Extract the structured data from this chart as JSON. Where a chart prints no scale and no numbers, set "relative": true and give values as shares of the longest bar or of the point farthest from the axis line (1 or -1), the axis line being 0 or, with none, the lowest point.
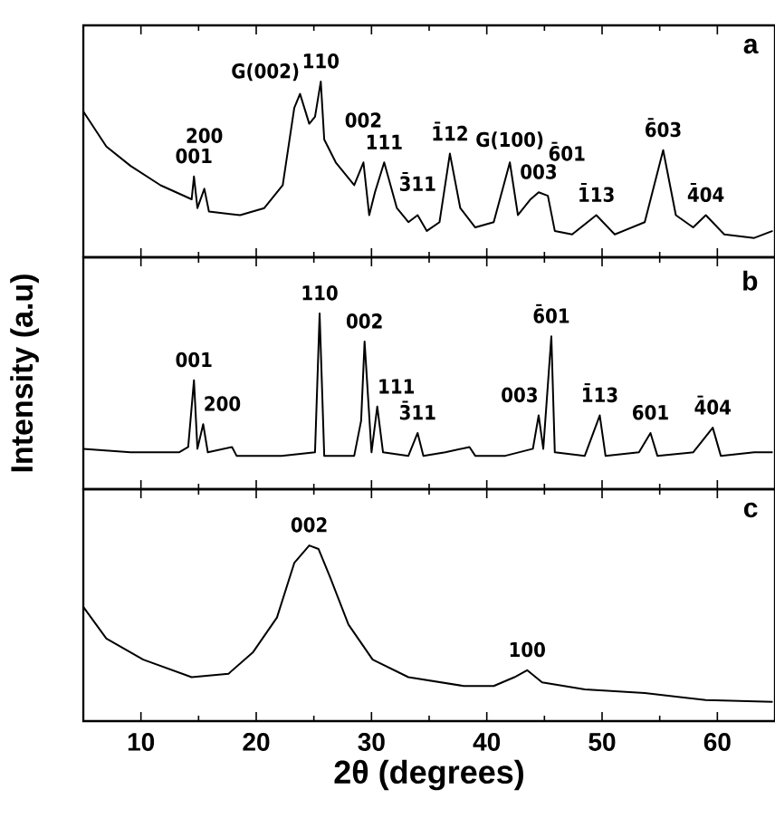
{
  "chart_data": [
    {
      "type": "line",
      "title": "a",
      "relative": true,
      "color": "#000000",
      "xlim": [
        5,
        65
      ],
      "xticks": [
        10,
        20,
        30,
        40,
        50,
        60
      ],
      "tick_labels": false,
      "x": [
        5,
        7.0,
        9.1,
        11.7,
        14.4,
        14.6,
        14.9,
        15.5,
        15.9,
        18.6,
        20.7,
        22.3,
        23.3,
        23.8,
        24.6,
        25.1,
        25.6,
        25.9,
        26.9,
        28.5,
        29.3,
        29.8,
        30.3,
        31.1,
        32.2,
        33.2,
        34.0,
        34.8,
        35.9,
        36.8,
        37.7,
        39.0,
        40.6,
        42.0,
        42.7,
        43.8,
        44.5,
        45.3,
        45.9,
        47.4,
        49.5,
        51.1,
        53.7,
        55.3,
        56.4,
        57.9,
        59.0,
        60.6,
        63.2,
        64.8
      ],
      "values": [
        0.83,
        0.63,
        0.52,
        0.41,
        0.33,
        0.46,
        0.28,
        0.39,
        0.26,
        0.24,
        0.28,
        0.41,
        0.85,
        0.93,
        0.76,
        0.8,
        1,
        0.67,
        0.54,
        0.41,
        0.54,
        0.24,
        0.37,
        0.54,
        0.28,
        0.2,
        0.24,
        0.15,
        0.2,
        0.59,
        0.28,
        0.17,
        0.2,
        0.54,
        0.24,
        0.33,
        0.37,
        0.35,
        0.15,
        0.13,
        0.24,
        0.13,
        0.2,
        0.61,
        0.24,
        0.17,
        0.24,
        0.13,
        0.11,
        0.15
      ],
      "annotations": [
        {
          "text": "110",
          "x": 25.6,
          "y": 1
        },
        {
          "text": "G(002)",
          "x": 23.8,
          "y": 0.93
        },
        {
          "text": "1̄12",
          "x": 36.8,
          "y": 0.59
        },
        {
          "text": "111",
          "x": 31.1,
          "y": 0.54
        },
        {
          "text": "002",
          "x": 29.3,
          "y": 0.54
        },
        {
          "text": "001",
          "x": 14.6,
          "y": 0.46
        },
        {
          "text": "200",
          "x": 15.5,
          "y": 0.39
        },
        {
          "text": "3̄11",
          "x": 34.0,
          "y": 0.24
        },
        {
          "text": "G(100)",
          "x": 42.0,
          "y": 0.54
        },
        {
          "text": "003",
          "x": 44.5,
          "y": 0.37
        },
        {
          "text": "6̄01",
          "x": 45.3,
          "y": 0.35
        },
        {
          "text": "1̄13",
          "x": 49.5,
          "y": 0.24
        },
        {
          "text": "6̄03",
          "x": 55.3,
          "y": 0.61
        },
        {
          "text": "4̄04",
          "x": 59.0,
          "y": 0.24
        }
      ]
    },
    {
      "type": "line",
      "title": "b",
      "ylabel": "Intensity (a.u)",
      "relative": true,
      "color": "#000000",
      "xlim": [
        5,
        65
      ],
      "xticks": [
        10,
        20,
        30,
        40,
        50,
        60
      ],
      "tick_labels": false,
      "x": [
        5,
        9.1,
        13.3,
        14.1,
        14.6,
        14.9,
        15.4,
        15.8,
        17.9,
        18.3,
        22.2,
        25.1,
        25.5,
        25.9,
        28.5,
        29.1,
        29.4,
        30.0,
        30.5,
        31.0,
        33.2,
        34.0,
        34.5,
        36.4,
        38.5,
        39.0,
        41.6,
        44.0,
        44.5,
        44.9,
        45.6,
        45.9,
        48.5,
        49.8,
        50.3,
        53.2,
        54.2,
        54.8,
        57.9,
        59.6,
        60.3,
        63.2,
        64.8
      ],
      "values": [
        0.23,
        0.21,
        0.21,
        0.24,
        0.62,
        0.23,
        0.37,
        0.21,
        0.24,
        0.19,
        0.19,
        0.21,
        1,
        0.19,
        0.19,
        0.39,
        0.84,
        0.21,
        0.47,
        0.21,
        0.19,
        0.32,
        0.19,
        0.21,
        0.24,
        0.19,
        0.19,
        0.23,
        0.42,
        0.23,
        0.87,
        0.21,
        0.19,
        0.42,
        0.19,
        0.21,
        0.32,
        0.19,
        0.21,
        0.35,
        0.19,
        0.21,
        0.21
      ],
      "annotations": [
        {
          "text": "110",
          "x": 25.5,
          "y": 1
        },
        {
          "text": "6̄01",
          "x": 45.6,
          "y": 0.87
        },
        {
          "text": "002",
          "x": 29.4,
          "y": 0.84
        },
        {
          "text": "001",
          "x": 14.6,
          "y": 0.62
        },
        {
          "text": "111",
          "x": 30.5,
          "y": 0.47
        },
        {
          "text": "200",
          "x": 15.4,
          "y": 0.37
        },
        {
          "text": "003",
          "x": 44.5,
          "y": 0.42
        },
        {
          "text": "1̄13",
          "x": 49.8,
          "y": 0.42
        },
        {
          "text": "3̄11",
          "x": 34.0,
          "y": 0.32
        },
        {
          "text": "601",
          "x": 54.2,
          "y": 0.32
        },
        {
          "text": "4̄04",
          "x": 59.6,
          "y": 0.35
        }
      ]
    },
    {
      "type": "line",
      "title": "c",
      "xlabel": "2θ (degrees)",
      "relative": true,
      "color": "#000000",
      "xlim": [
        5,
        65
      ],
      "xticks": [
        10,
        20,
        30,
        40,
        50,
        60
      ],
      "x": [
        5,
        7.0,
        10.2,
        14.4,
        17.6,
        19.7,
        21.8,
        23.3,
        24.6,
        25.4,
        26.4,
        28.0,
        30.1,
        33.2,
        38.0,
        40.6,
        42.4,
        43.5,
        44.8,
        48.5,
        53.7,
        59.0,
        64.8
      ],
      "values": [
        0.65,
        0.47,
        0.35,
        0.25,
        0.27,
        0.39,
        0.59,
        0.9,
        1,
        0.98,
        0.82,
        0.55,
        0.35,
        0.25,
        0.2,
        0.2,
        0.25,
        0.29,
        0.22,
        0.18,
        0.16,
        0.12,
        0.11
      ],
      "annotations": [
        {
          "text": "002",
          "x": 24.6,
          "y": 1
        },
        {
          "text": "100",
          "x": 43.5,
          "y": 0.29
        }
      ]
    }
  ]
}
